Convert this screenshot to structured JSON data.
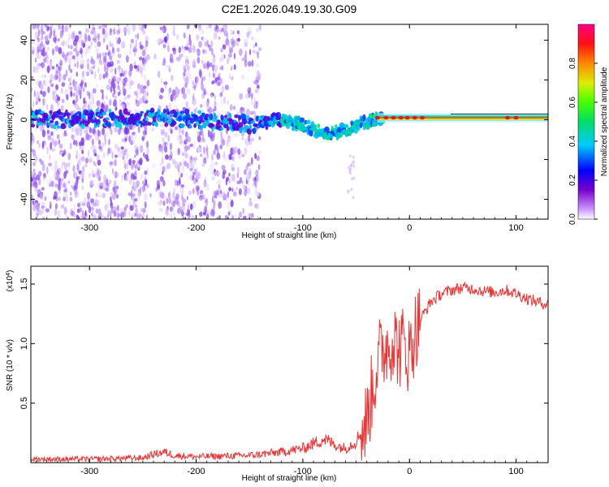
{
  "title": "C2E1.2026.049.19.30.G09",
  "chart_data": [
    {
      "type": "heatmap",
      "xlabel": "Height of straight line (km)",
      "ylabel": "Frequency (Hz)",
      "xlim": [
        -355,
        130
      ],
      "ylim": [
        -50,
        48
      ],
      "xticks": [
        -300,
        -200,
        -100,
        0,
        100
      ],
      "xtick_labels": [
        "-300",
        "-200",
        "-100",
        "0",
        "100"
      ],
      "yticks": [
        -40,
        -20,
        0,
        20,
        40
      ],
      "ytick_labels": [
        "-40",
        "-20",
        "0",
        "20",
        "40"
      ],
      "ridge": {
        "x": [
          -355,
          -300,
          -250,
          -200,
          -150,
          -120,
          -100,
          -80,
          -60,
          -40,
          -30,
          0,
          50,
          100,
          130
        ],
        "freq": [
          0,
          0,
          1,
          0,
          -2,
          0,
          -3,
          -7,
          -5,
          -1,
          1,
          1,
          1,
          1,
          2
        ]
      },
      "colorbar": {
        "label": "Normalized spectral amplitude",
        "ticks": [
          0.0,
          0.2,
          0.4,
          0.6,
          0.8
        ],
        "tick_labels": [
          "0.0",
          "0.2",
          "0.4",
          "0.6",
          "0.8"
        ],
        "range": [
          0,
          1
        ]
      }
    },
    {
      "type": "line",
      "xlabel": "Height of straight line (km)",
      "ylabel": "SNR (10 * v/v)",
      "scale_label": "(x10",
      "scale_exp": "4",
      "scale_close": ")",
      "xlim": [
        -355,
        130
      ],
      "ylim": [
        0,
        1.65
      ],
      "xticks": [
        -300,
        -200,
        -100,
        0,
        100
      ],
      "xtick_labels": [
        "-300",
        "-200",
        "-100",
        "0",
        "100"
      ],
      "yticks": [
        0.5,
        1.0,
        1.5
      ],
      "ytick_labels": [
        "0.5",
        "1.0",
        "1.5"
      ],
      "color": "#ee3333",
      "series": [
        {
          "name": "SNR",
          "x": [
            -355,
            -300,
            -250,
            -240,
            -230,
            -220,
            -200,
            -150,
            -120,
            -100,
            -90,
            -80,
            -70,
            -60,
            -50,
            -40,
            -35,
            -30,
            -25,
            -20,
            -15,
            -10,
            -5,
            0,
            5,
            10,
            20,
            30,
            40,
            50,
            60,
            70,
            80,
            90,
            100,
            110,
            120,
            130
          ],
          "values": [
            0.03,
            0.03,
            0.04,
            0.07,
            0.09,
            0.06,
            0.05,
            0.06,
            0.09,
            0.12,
            0.16,
            0.2,
            0.15,
            0.12,
            0.18,
            0.35,
            0.6,
            0.85,
            0.95,
            1.0,
            1.05,
            0.95,
            1.0,
            0.9,
            1.1,
            1.2,
            1.35,
            1.42,
            1.45,
            1.47,
            1.46,
            1.44,
            1.43,
            1.45,
            1.42,
            1.38,
            1.35,
            1.33
          ]
        }
      ]
    }
  ]
}
